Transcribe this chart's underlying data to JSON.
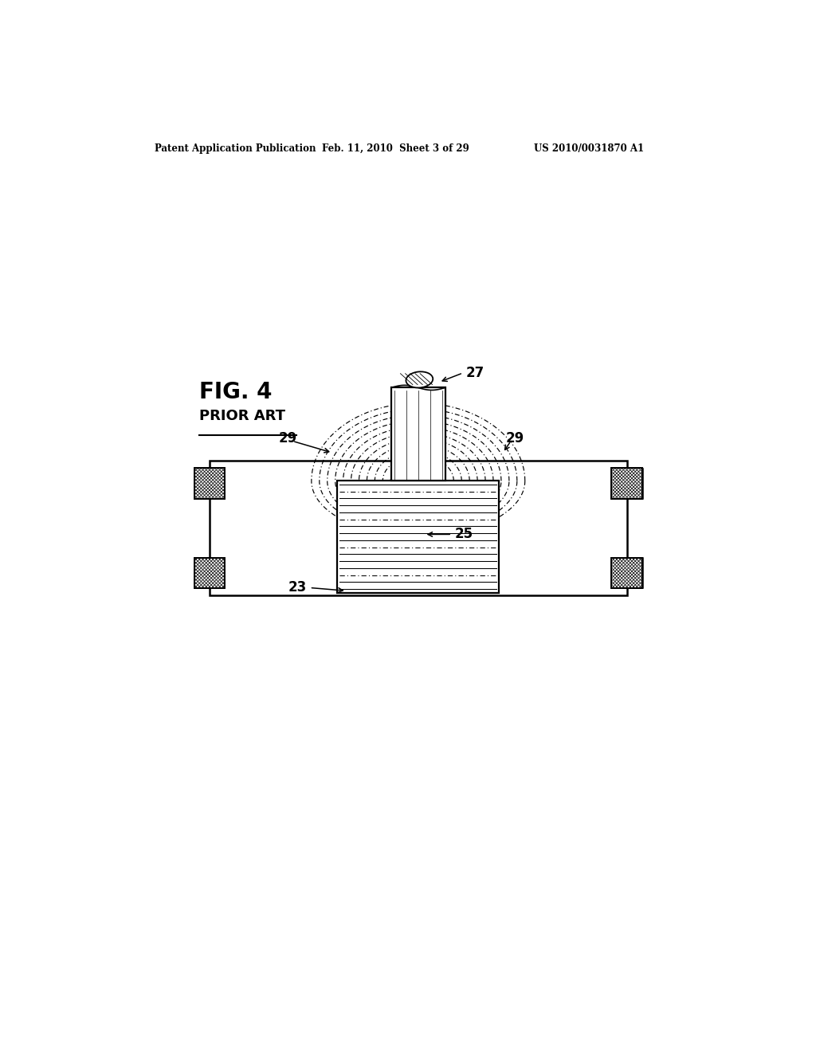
{
  "bg_color": "#ffffff",
  "line_color": "#000000",
  "header_left": "Patent Application Publication",
  "header_mid": "Feb. 11, 2010  Sheet 3 of 29",
  "header_right": "US 2010/0031870 A1",
  "fig_label": "FIG. 4",
  "fig_sublabel": "PRIOR ART",
  "label_27": "27",
  "label_25": "25",
  "label_23": "23",
  "label_29_left": "29",
  "label_29_right": "29"
}
